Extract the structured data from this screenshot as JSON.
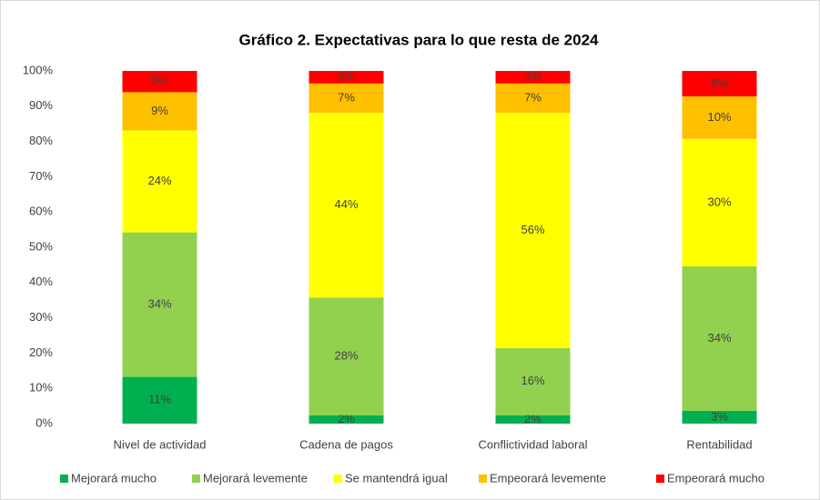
{
  "chart_data": {
    "type": "bar",
    "stacking": "percent",
    "title": "Gráfico 2. Expectativas para lo que resta de 2024",
    "categories": [
      "Nivel de actividad",
      "Cadena de pagos",
      "Conflictividad laboral",
      "Rentabilidad"
    ],
    "series": [
      {
        "name": "Mejorará mucho",
        "color": "#00b050",
        "values": [
          11,
          2,
          2,
          3
        ],
        "value_labels": [
          "11%",
          "2%",
          "2%",
          "3%"
        ]
      },
      {
        "name": "Mejorará levemente",
        "color": "#92d050",
        "values": [
          34,
          28,
          16,
          34
        ],
        "value_labels": [
          "34%",
          "28%",
          "16%",
          "34%"
        ]
      },
      {
        "name": "Se mantendrá igual",
        "color": "#ffff00",
        "values": [
          24,
          44,
          56,
          30
        ],
        "value_labels": [
          "24%",
          "44%",
          "56%",
          "30%"
        ]
      },
      {
        "name": "Empeorará levemente",
        "color": "#ffc000",
        "values": [
          9,
          7,
          7,
          10
        ],
        "value_labels": [
          "9%",
          "7%",
          "7%",
          "10%"
        ]
      },
      {
        "name": "Empeorará mucho",
        "color": "#ff0000",
        "values": [
          5,
          3,
          3,
          6
        ],
        "value_labels": [
          "5%",
          "3%",
          "3%",
          "6%"
        ]
      }
    ],
    "ylim": [
      0,
      100
    ],
    "yticks": [
      {
        "value": 0,
        "label": "0%"
      },
      {
        "value": 10,
        "label": "10%"
      },
      {
        "value": 20,
        "label": "20%"
      },
      {
        "value": 30,
        "label": "30%"
      },
      {
        "value": 40,
        "label": "40%"
      },
      {
        "value": 50,
        "label": "50%"
      },
      {
        "value": 60,
        "label": "60%"
      },
      {
        "value": 70,
        "label": "70%"
      },
      {
        "value": 80,
        "label": "80%"
      },
      {
        "value": 90,
        "label": "90%"
      },
      {
        "value": 100,
        "label": "100%"
      }
    ],
    "grid": false,
    "legend": "bottom"
  }
}
